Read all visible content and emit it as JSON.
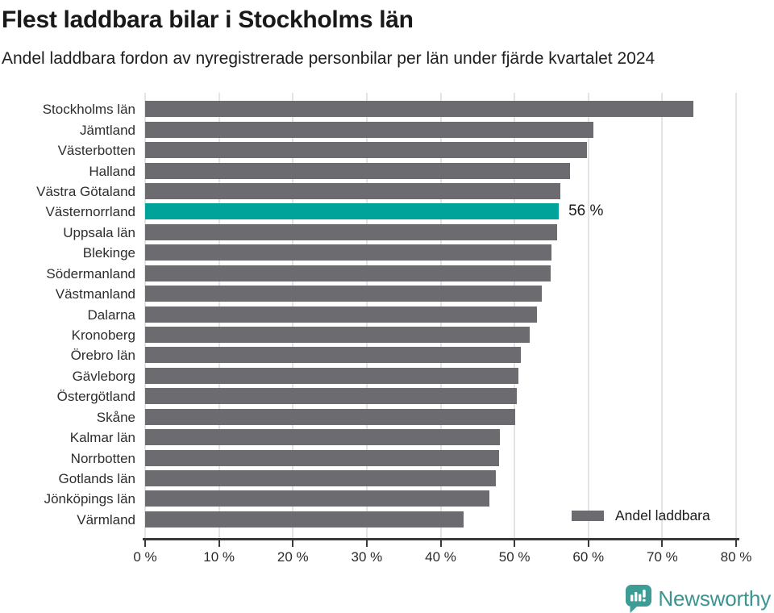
{
  "header": {
    "title": "Flest laddbara bilar i Stockholms län",
    "subtitle": "Andel laddbara fordon av nyregistrerade personbilar per län under fjärde kvartalet 2024"
  },
  "chart_data": {
    "type": "bar",
    "orientation": "horizontal",
    "title": "Flest laddbara bilar i Stockholms län",
    "subtitle": "Andel laddbara fordon av nyregistrerade personbilar per län under fjärde kvartalet 2024",
    "categories": [
      "Stockholms län",
      "Jämtland",
      "Västerbotten",
      "Halland",
      "Västra Götaland",
      "Västernorrland",
      "Uppsala län",
      "Blekinge",
      "Södermanland",
      "Västmanland",
      "Dalarna",
      "Kronoberg",
      "Örebro län",
      "Gävleborg",
      "Östergötland",
      "Skåne",
      "Kalmar län",
      "Norrbotten",
      "Gotlands län",
      "Jönköpings län",
      "Värmland"
    ],
    "values": [
      74.2,
      60.7,
      59.8,
      57.5,
      56.2,
      56,
      55.8,
      55,
      54.9,
      53.7,
      53,
      52.1,
      50.9,
      50.5,
      50.3,
      50.1,
      48,
      47.9,
      47.5,
      46.6,
      43.1
    ],
    "highlight": {
      "category": "Västernorrland",
      "index": 5,
      "value": 56,
      "label": "56 %"
    },
    "xlim": [
      0,
      80
    ],
    "x_tick_labels": [
      "0 %",
      "10 %",
      "20 %",
      "30 %",
      "40 %",
      "50 %",
      "60 %",
      "70 %",
      "80 %"
    ],
    "grid": true,
    "legend": {
      "label": "Andel laddbara",
      "position": "bottom-right"
    },
    "colors": {
      "bar": "#6b6b70",
      "highlight": "#00a399",
      "gridline": "#e4e4e6",
      "axis": "#39393d",
      "label_text": "#2e2e2e"
    }
  },
  "footer": {
    "brand": "Newsworthy",
    "brand_color": "#3b948f",
    "logo_icon": "newsworthy-speech-bubble-chart-icon"
  }
}
